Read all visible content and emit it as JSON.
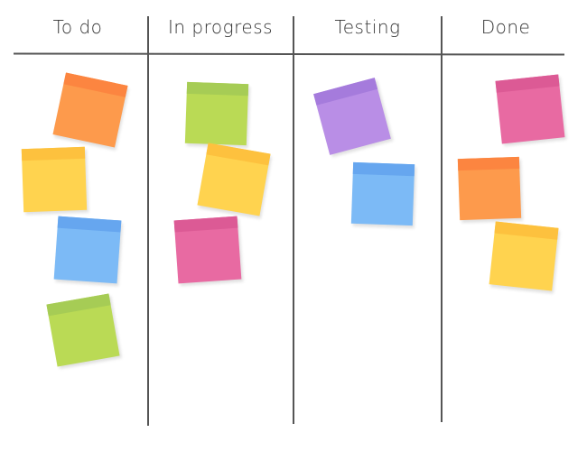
{
  "columns": [
    {
      "title": "To do",
      "notes": [
        {
          "color": "#fd9a4c",
          "strip": "#fc8540"
        },
        {
          "color": "#ffd34f",
          "strip": "#fdc13e"
        },
        {
          "color": "#7cbaf6",
          "strip": "#66a6ef"
        },
        {
          "color": "#bada55",
          "strip": "#a6cc55"
        }
      ]
    },
    {
      "title": "In progress",
      "notes": [
        {
          "color": "#bada55",
          "strip": "#a6cc55"
        },
        {
          "color": "#ffd34f",
          "strip": "#fdc13e"
        },
        {
          "color": "#e86aa2",
          "strip": "#dc5a95"
        }
      ]
    },
    {
      "title": "Testing",
      "notes": [
        {
          "color": "#b98ee6",
          "strip": "#a57bdc"
        },
        {
          "color": "#7cbaf6",
          "strip": "#66a6ef"
        }
      ]
    },
    {
      "title": "Done",
      "notes": [
        {
          "color": "#e86aa2",
          "strip": "#dc5a95"
        },
        {
          "color": "#fd9a4c",
          "strip": "#fc8540"
        },
        {
          "color": "#ffd34f",
          "strip": "#fdc13e"
        }
      ]
    }
  ]
}
